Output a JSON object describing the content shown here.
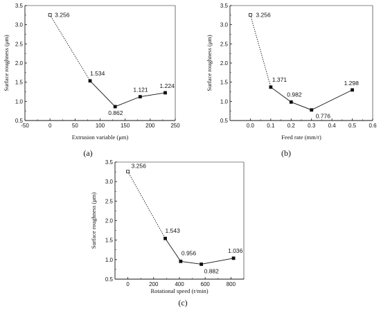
{
  "chart_data": [
    {
      "type": "line",
      "panel_label": "(a)",
      "xlabel": "Extrusion variable (μm)",
      "ylabel": "Surface roughness (μm)",
      "xlim": [
        -50,
        250
      ],
      "ylim": [
        0.5,
        3.5
      ],
      "xticks": [
        "-50",
        "0",
        "50",
        "100",
        "150",
        "200",
        "250"
      ],
      "yticks": [
        "0.5",
        "1.0",
        "1.5",
        "2.0",
        "2.5",
        "3.0",
        "3.5"
      ],
      "x": [
        0,
        80,
        130,
        180,
        230
      ],
      "y": [
        3.256,
        1.534,
        0.862,
        1.121,
        1.224
      ],
      "point_labels": [
        "3.256",
        "1.534",
        "0.862",
        "1.121",
        "1.224"
      ],
      "baseline_point": 0,
      "grid": false,
      "line_color": "#111111"
    },
    {
      "type": "line",
      "panel_label": "(b)",
      "xlabel": "Feed rate (mm/r)",
      "ylabel": "Surface roughness (μm)",
      "xlim": [
        -0.1,
        0.6
      ],
      "ylim": [
        0.5,
        3.5
      ],
      "xticks": [
        "0.0",
        "0.1",
        "0.2",
        "0.3",
        "0.4",
        "0.5",
        "0.6"
      ],
      "yticks": [
        "0.5",
        "1.0",
        "1.5",
        "2.0",
        "2.5",
        "3.0",
        "3.5"
      ],
      "x": [
        0,
        0.1,
        0.2,
        0.3,
        0.5
      ],
      "y": [
        3.256,
        1.371,
        0.982,
        0.776,
        1.298
      ],
      "point_labels": [
        "3.256",
        "1.371",
        "0.982",
        "0.776",
        "1.298"
      ],
      "baseline_point": 0,
      "grid": false,
      "line_color": "#111111"
    },
    {
      "type": "line",
      "panel_label": "(c)",
      "xlabel": "Rotational speed (r/min)",
      "ylabel": "Surface roughness (μm)",
      "xlim": [
        -100,
        900
      ],
      "ylim": [
        0.5,
        3.5
      ],
      "xticks": [
        "0",
        "200",
        "400",
        "600",
        "800"
      ],
      "yticks": [
        "0.5",
        "1.0",
        "1.5",
        "2.0",
        "2.5",
        "3.0",
        "3.5"
      ],
      "x": [
        0,
        290,
        410,
        570,
        820
      ],
      "y": [
        3.256,
        1.543,
        0.956,
        0.882,
        1.036
      ],
      "point_labels": [
        "3.256",
        "1.543",
        "0.956",
        "0.882",
        "1.036"
      ],
      "baseline_point": 0,
      "grid": false,
      "line_color": "#111111"
    }
  ]
}
